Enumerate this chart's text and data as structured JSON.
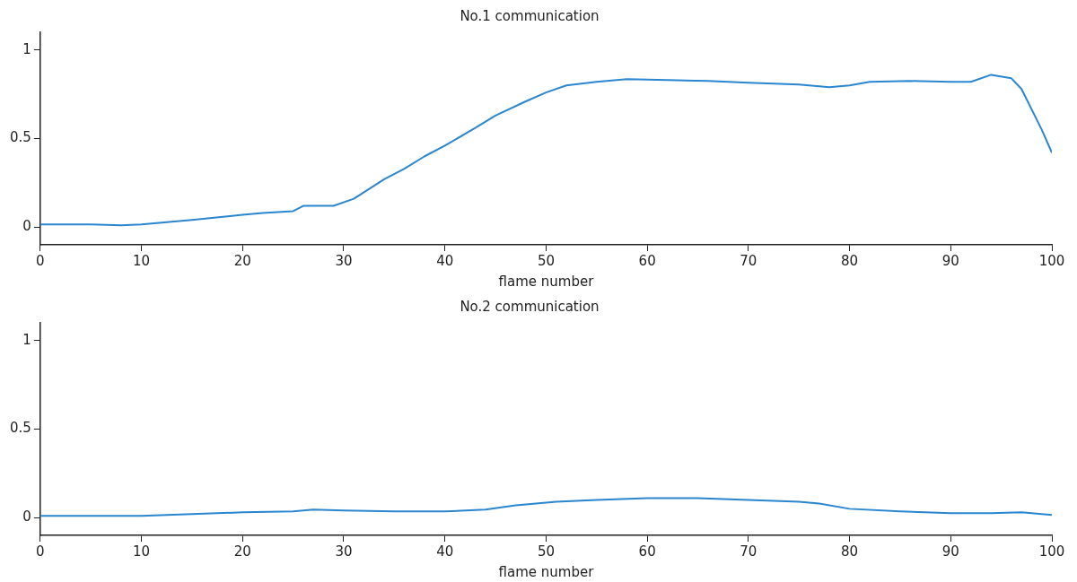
{
  "chart_data": [
    {
      "type": "line",
      "title": "No.1 communication",
      "xlabel": "flame number",
      "xlim": [
        0,
        100
      ],
      "xticks": [
        0,
        10,
        20,
        30,
        40,
        50,
        60,
        70,
        80,
        90,
        100
      ],
      "ylim": [
        -0.1,
        1.1
      ],
      "yticks": [
        0,
        0.5,
        1
      ],
      "grid": false,
      "x": [
        0,
        5,
        8,
        10,
        15,
        20,
        22,
        25,
        26,
        29,
        31,
        34,
        36,
        38,
        40,
        43,
        45,
        48,
        50,
        52,
        55,
        58,
        62,
        66,
        70,
        75,
        78,
        80,
        82,
        86,
        90,
        92,
        94,
        96,
        97,
        99,
        100
      ],
      "series": [
        {
          "color": "#2a86cf",
          "values": [
            0.015,
            0.015,
            0.01,
            0.015,
            0.04,
            0.07,
            0.08,
            0.09,
            0.12,
            0.12,
            0.16,
            0.27,
            0.33,
            0.4,
            0.46,
            0.56,
            0.63,
            0.71,
            0.76,
            0.8,
            0.82,
            0.835,
            0.83,
            0.825,
            0.815,
            0.805,
            0.79,
            0.8,
            0.82,
            0.825,
            0.82,
            0.82,
            0.86,
            0.84,
            0.78,
            0.55,
            0.42
          ]
        }
      ]
    },
    {
      "type": "line",
      "title": "No.2 communication",
      "xlabel": "flame number",
      "xlim": [
        0,
        100
      ],
      "xticks": [
        0,
        10,
        20,
        30,
        40,
        50,
        60,
        70,
        80,
        90,
        100
      ],
      "ylim": [
        -0.1,
        1.1
      ],
      "yticks": [
        0,
        0.5,
        1
      ],
      "grid": false,
      "x": [
        0,
        10,
        20,
        25,
        27,
        30,
        35,
        40,
        44,
        47,
        51,
        55,
        60,
        65,
        70,
        75,
        77,
        80,
        85,
        90,
        94,
        97,
        100
      ],
      "series": [
        {
          "color": "#2a86cf",
          "values": [
            0.01,
            0.01,
            0.03,
            0.035,
            0.045,
            0.04,
            0.035,
            0.035,
            0.045,
            0.07,
            0.09,
            0.1,
            0.11,
            0.11,
            0.1,
            0.09,
            0.08,
            0.05,
            0.035,
            0.025,
            0.025,
            0.03,
            0.015
          ]
        }
      ]
    }
  ]
}
